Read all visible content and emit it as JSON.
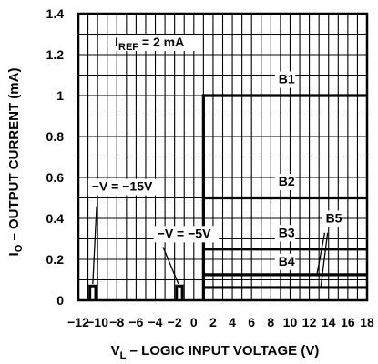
{
  "chart_data": {
    "type": "line",
    "xlabel_main": "V",
    "xlabel_sub": "L",
    "xlabel_rest": " – LOGIC INPUT VOLTAGE (V)",
    "ylabel_main": "I",
    "ylabel_sub": "O",
    "ylabel_rest": " – OUTPUT CURRENT (mA)",
    "xlim": [
      -12,
      18
    ],
    "ylim": [
      0,
      1.4
    ],
    "yticks": [
      {
        "value": 0,
        "label": "0"
      },
      {
        "value": 0.2,
        "label": "0.2"
      },
      {
        "value": 0.4,
        "label": "0.4"
      },
      {
        "value": 0.6,
        "label": "0.6"
      },
      {
        "value": 0.8,
        "label": "0.8"
      },
      {
        "value": 1.0,
        "label": "1"
      },
      {
        "value": 1.2,
        "label": "1.2"
      },
      {
        "value": 1.4,
        "label": "1.4"
      }
    ],
    "xticks": [
      {
        "value": -12,
        "label": "−12"
      },
      {
        "value": -10,
        "label": "−10"
      },
      {
        "value": -8,
        "label": "−8"
      },
      {
        "value": -6,
        "label": "−6"
      },
      {
        "value": -4,
        "label": "−4"
      },
      {
        "value": -2,
        "label": "−2"
      },
      {
        "value": 0,
        "label": "0"
      },
      {
        "value": 2,
        "label": "2"
      },
      {
        "value": 4,
        "label": "4"
      },
      {
        "value": 6,
        "label": "6"
      },
      {
        "value": 8,
        "label": "8"
      },
      {
        "value": 10,
        "label": "10"
      },
      {
        "value": 12,
        "label": "12"
      },
      {
        "value": 14,
        "label": "14"
      },
      {
        "value": 16,
        "label": "16"
      },
      {
        "value": 18,
        "label": "18"
      }
    ],
    "grid": true,
    "series": [
      {
        "name": "B1",
        "x": [
          1,
          1,
          18
        ],
        "y": [
          0,
          1.0,
          1.0
        ]
      },
      {
        "name": "B2",
        "x": [
          1,
          18
        ],
        "y": [
          0.5,
          0.5
        ]
      },
      {
        "name": "B3",
        "x": [
          1,
          18
        ],
        "y": [
          0.25,
          0.25
        ]
      },
      {
        "name": "B4",
        "x": [
          1,
          18
        ],
        "y": [
          0.125,
          0.125
        ]
      },
      {
        "name": "B5",
        "x": [
          1,
          18
        ],
        "y": [
          0.0625,
          0.0625
        ]
      }
    ],
    "spikes": [
      {
        "x_start": -10.8,
        "x_end": -10.2,
        "height": 0.07
      },
      {
        "x_start": -1.8,
        "x_end": -1.2,
        "height": 0.07
      }
    ],
    "annotations": [
      {
        "label": "IREF = 2 mA",
        "main": "I",
        "sub": "REF",
        "rest": " = 2 mA",
        "x": -8.2,
        "y": 1.24
      },
      {
        "label": "−V = −15V",
        "x": -10.6,
        "y": 0.535
      },
      {
        "label": "−V = −5V",
        "x": -3.8,
        "y": 0.305
      },
      {
        "label": "B1",
        "x": 8.8,
        "y": 1.06
      },
      {
        "label": "B2",
        "x": 8.8,
        "y": 0.56
      },
      {
        "label": "B3",
        "x": 8.8,
        "y": 0.31
      },
      {
        "label": "B4",
        "x": 8.8,
        "y": 0.17
      },
      {
        "label": "B5",
        "x": 13.7,
        "y": 0.38
      }
    ],
    "pointers": [
      {
        "from": [
          -10.1,
          0.46
        ],
        "to": [
          -10.5,
          0.08
        ]
      },
      {
        "from": [
          -3.2,
          0.26
        ],
        "to": [
          -1.6,
          0.08
        ]
      },
      {
        "from": [
          13.6,
          0.33
        ],
        "to": [
          12.8,
          0.13
        ]
      },
      {
        "from": [
          13.9,
          0.33
        ],
        "to": [
          13.2,
          0.068
        ]
      }
    ]
  }
}
